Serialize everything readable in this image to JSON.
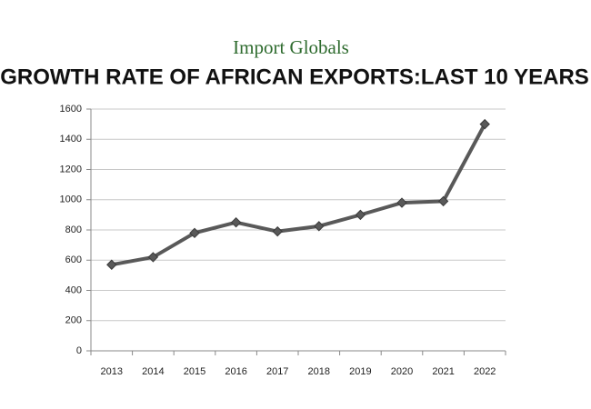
{
  "chart_data": {
    "type": "line",
    "brand": "Import Globals",
    "title": "GROWTH RATE OF AFRICAN EXPORTS:LAST 10 YEARS",
    "categories": [
      "2013",
      "2014",
      "2015",
      "2016",
      "2017",
      "2018",
      "2019",
      "2020",
      "2021",
      "2022"
    ],
    "series": [
      {
        "color": "#595959",
        "values": [
          570,
          620,
          780,
          850,
          790,
          825,
          900,
          980,
          990,
          1500
        ]
      }
    ],
    "ylim": [
      0,
      1600
    ],
    "yticks": [
      0,
      200,
      400,
      600,
      800,
      1000,
      1200,
      1400,
      1600
    ],
    "grid": true
  }
}
